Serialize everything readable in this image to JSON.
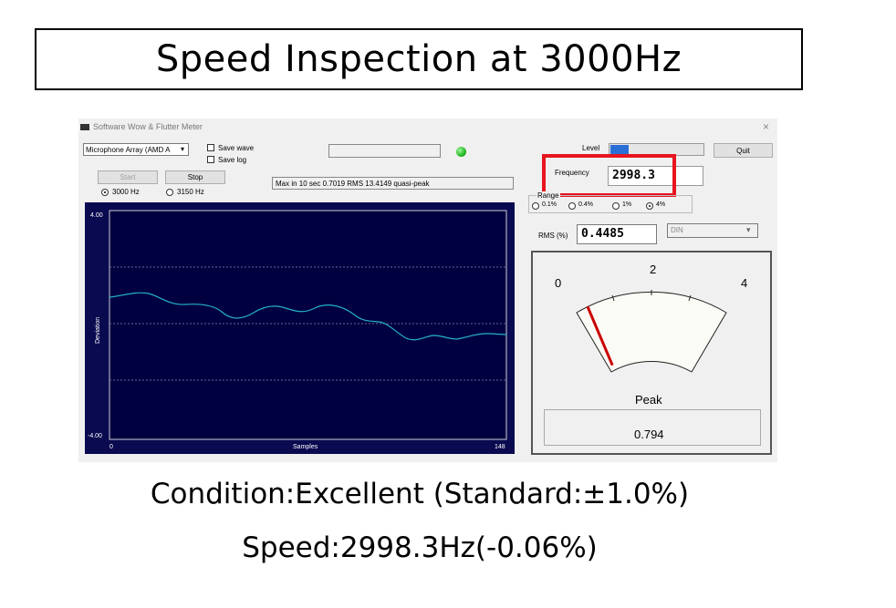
{
  "slide": {
    "title": "Speed Inspection at 3000Hz",
    "condition": "Condition:Excellent (Standard:±1.0%)",
    "speed": "Speed:2998.3Hz(-0.06%)"
  },
  "window": {
    "title": "Software Wow & Flutter Meter",
    "close_glyph": "×"
  },
  "controls": {
    "device_select": "Microphone Array (AMD A",
    "save_wave": "Save wave",
    "save_log": "Save log",
    "start": "Start",
    "stop": "Stop",
    "freq_3000": "3000 Hz",
    "freq_3150": "3150 Hz",
    "selected_freq": "3000 Hz",
    "status_message": "Max in 10 sec 0.7019 RMS 13.4149 quasi-peak",
    "level_label": "Level",
    "level_fraction": 0.2,
    "quit": "Quit",
    "frequency_label": "Frequency",
    "frequency_value": "2998.3",
    "range_label": "Range",
    "ranges": [
      "0.1%",
      "0.4%",
      "1%",
      "4%"
    ],
    "selected_range": "4%",
    "rms_label": "RMS (%)",
    "rms_value": "0.4485",
    "weighting_select": "DIN",
    "indicator_color": "#22bb22"
  },
  "graph": {
    "ylabel": "Deviation",
    "xlabel": "Samples",
    "y_top": "4.00",
    "y_bottom": "-4.00",
    "x_start": "0",
    "x_end": "148"
  },
  "meter": {
    "scale_labels": [
      "0",
      "2",
      "4"
    ],
    "peak_label": "Peak",
    "peak_value": "0.794",
    "needle_value": 0.794,
    "scale_max": 4
  },
  "highlight_color": "#e8141e"
}
